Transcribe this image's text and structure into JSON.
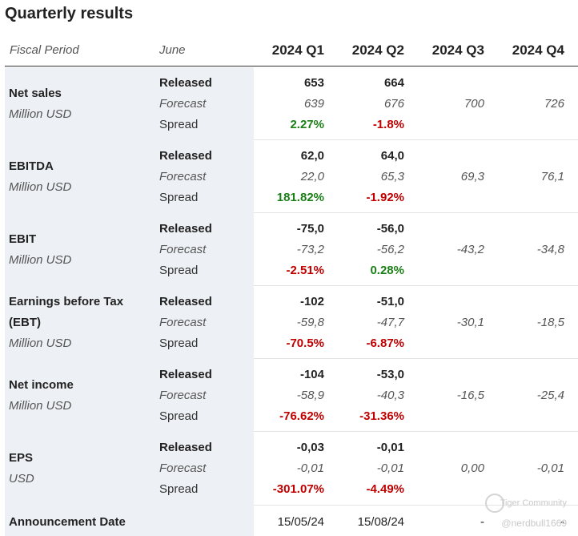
{
  "title": "Quarterly results",
  "header": {
    "period_label": "Fiscal Period",
    "month_label": "June",
    "quarters": [
      "2024 Q1",
      "2024 Q2",
      "2024 Q3",
      "2024 Q4"
    ]
  },
  "sublabels": {
    "released": "Released",
    "forecast": "Forecast",
    "spread": "Spread"
  },
  "metrics": [
    {
      "name": "Net sales",
      "unit": "Million USD",
      "released": [
        "653",
        "664",
        "",
        ""
      ],
      "forecast": [
        "639",
        "676",
        "700",
        "726"
      ],
      "spread": [
        "2.27%",
        "-1.8%",
        "",
        ""
      ]
    },
    {
      "name": "EBITDA",
      "unit": "Million USD",
      "released": [
        "62,0",
        "64,0",
        "",
        ""
      ],
      "forecast": [
        "22,0",
        "65,3",
        "69,3",
        "76,1"
      ],
      "spread": [
        "181.82%",
        "-1.92%",
        "",
        ""
      ]
    },
    {
      "name": "EBIT",
      "unit": "Million USD",
      "released": [
        "-75,0",
        "-56,0",
        "",
        ""
      ],
      "forecast": [
        "-73,2",
        "-56,2",
        "-43,2",
        "-34,8"
      ],
      "spread": [
        "-2.51%",
        "0.28%",
        "",
        ""
      ]
    },
    {
      "name": "Earnings before Tax",
      "name2": "(EBT)",
      "unit": "Million USD",
      "released": [
        "-102",
        "-51,0",
        "",
        ""
      ],
      "forecast": [
        "-59,8",
        "-47,7",
        "-30,1",
        "-18,5"
      ],
      "spread": [
        "-70.5%",
        "-6.87%",
        "",
        ""
      ]
    },
    {
      "name": "Net income",
      "unit": "Million USD",
      "released": [
        "-104",
        "-53,0",
        "",
        ""
      ],
      "forecast": [
        "-58,9",
        "-40,3",
        "-16,5",
        "-25,4"
      ],
      "spread": [
        "-76.62%",
        "-31.36%",
        "",
        ""
      ]
    },
    {
      "name": "EPS",
      "unit": "USD",
      "released": [
        "-0,03",
        "-0,01",
        "",
        ""
      ],
      "forecast": [
        "-0,01",
        "-0,01",
        "0,00",
        "-0,01"
      ],
      "spread": [
        "-301.07%",
        "-4.49%",
        "",
        ""
      ]
    }
  ],
  "announcement": {
    "label": "Announcement Date",
    "dates": [
      "15/05/24",
      "15/08/24",
      "-",
      "-"
    ]
  },
  "watermark": {
    "brand": "Tiger Community",
    "user": "@nerdbull1669"
  },
  "colors": {
    "positive": "#1a7f16",
    "negative": "#c00000",
    "label_shade": "#edf0f4"
  }
}
